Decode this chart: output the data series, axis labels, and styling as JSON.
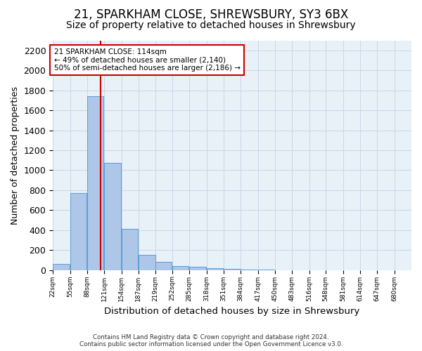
{
  "title": "21, SPARKHAM CLOSE, SHREWSBURY, SY3 6BX",
  "subtitle": "Size of property relative to detached houses in Shrewsbury",
  "xlabel": "Distribution of detached houses by size in Shrewsbury",
  "ylabel": "Number of detached properties",
  "footer_line1": "Contains HM Land Registry data © Crown copyright and database right 2024.",
  "footer_line2": "Contains public sector information licensed under the Open Government Licence v3.0.",
  "bin_labels": [
    "22sqm",
    "55sqm",
    "88sqm",
    "121sqm",
    "154sqm",
    "187sqm",
    "219sqm",
    "252sqm",
    "285sqm",
    "318sqm",
    "351sqm",
    "384sqm",
    "417sqm",
    "450sqm",
    "483sqm",
    "516sqm",
    "548sqm",
    "581sqm",
    "614sqm",
    "647sqm",
    "680sqm"
  ],
  "bin_edges": [
    22,
    55,
    88,
    121,
    154,
    187,
    219,
    252,
    285,
    318,
    351,
    384,
    417,
    450,
    483,
    516,
    548,
    581,
    614,
    647,
    680
  ],
  "bar_heights": [
    60,
    770,
    1740,
    1070,
    415,
    155,
    85,
    40,
    30,
    20,
    10,
    5,
    3,
    0,
    0,
    0,
    0,
    0,
    0,
    0,
    0
  ],
  "bar_color": "#aec6e8",
  "bar_edge_color": "#5a9fd4",
  "property_size": 114,
  "property_line_color": "#cc0000",
  "annotation_text": "21 SPARKHAM CLOSE: 114sqm\n← 49% of detached houses are smaller (2,140)\n50% of semi-detached houses are larger (2,186) →",
  "annotation_box_color": "#ffffff",
  "annotation_box_edge": "#cc0000",
  "ylim": [
    0,
    2300
  ],
  "yticks": [
    0,
    200,
    400,
    600,
    800,
    1000,
    1200,
    1400,
    1600,
    1800,
    2000,
    2200
  ],
  "grid_color": "#c8d8e8",
  "bg_color": "#e8f0f8",
  "title_fontsize": 12,
  "subtitle_fontsize": 10,
  "axis_fontsize": 9
}
